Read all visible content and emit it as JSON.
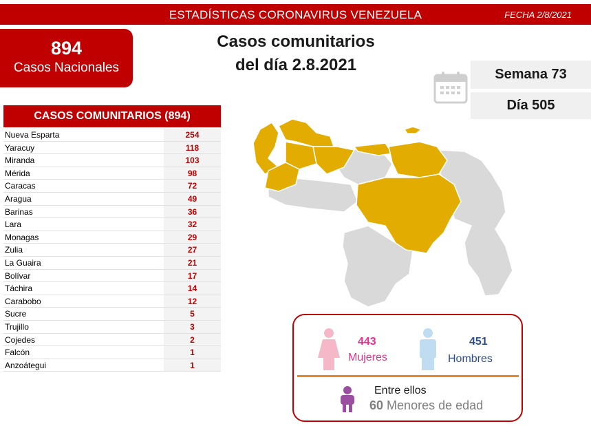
{
  "header": {
    "title": "ESTADÍSTICAS CORONAVIRUS VENEZUELA",
    "date": "FECHA 2/8/2021"
  },
  "total": {
    "number": "894",
    "label": "Casos Nacionales"
  },
  "headline": {
    "line1": "Casos comunitarios",
    "line2": "del día 2.8.2021"
  },
  "week": "Semana 73",
  "day": "Día 505",
  "table": {
    "title": "CASOS COMUNITARIOS (894)",
    "rows": [
      {
        "name": "Nueva Esparta",
        "value": "254"
      },
      {
        "name": "Yaracuy",
        "value": "118"
      },
      {
        "name": "Miranda",
        "value": "103"
      },
      {
        "name": "Mérida",
        "value": "98"
      },
      {
        "name": "Caracas",
        "value": "72"
      },
      {
        "name": "Aragua",
        "value": "49"
      },
      {
        "name": "Barinas",
        "value": "36"
      },
      {
        "name": "Lara",
        "value": "32"
      },
      {
        "name": "Monagas",
        "value": "29"
      },
      {
        "name": "Zulia",
        "value": "27"
      },
      {
        "name": "La Guaira",
        "value": "21"
      },
      {
        "name": "Bolívar",
        "value": "17"
      },
      {
        "name": "Táchira",
        "value": "14"
      },
      {
        "name": "Carabobo",
        "value": "12"
      },
      {
        "name": "Sucre",
        "value": "5"
      },
      {
        "name": "Trujillo",
        "value": "3"
      },
      {
        "name": "Cojedes",
        "value": "2"
      },
      {
        "name": "Falcón",
        "value": "1"
      },
      {
        "name": "Anzoátegui",
        "value": "1"
      }
    ]
  },
  "gender": {
    "women_count": "443",
    "women_label": "Mujeres",
    "men_count": "451",
    "men_label": "Hombres",
    "among": "Entre ellos",
    "minors_count": "60",
    "minors_label": "Menores de edad"
  },
  "colors": {
    "brand_red": "#c00000",
    "map_highlight": "#e3ac00",
    "map_base": "#d9d9d9",
    "women": "#e8308c",
    "men": "#2e4d8f",
    "divider": "#e8862e"
  }
}
